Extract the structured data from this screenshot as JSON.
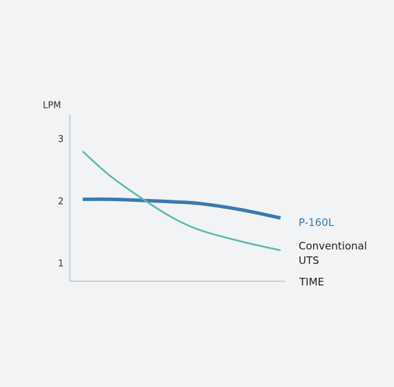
{
  "chart_data": {
    "type": "line",
    "y_label": "LPM",
    "x_label": "TIME",
    "x": [
      0.6,
      1.9,
      3.5,
      4.8,
      6.1,
      8.0,
      9.8
    ],
    "xlim": [
      0,
      10
    ],
    "ylim": [
      0.7,
      3.4
    ],
    "yticks": [
      1,
      2,
      3
    ],
    "series": [
      {
        "name": "P-160L",
        "color": "#3a79ae",
        "width": 5,
        "values": [
          2.04,
          2.04,
          2.02,
          2.0,
          1.97,
          1.87,
          1.74
        ]
      },
      {
        "name": "Conventional UTS",
        "color": "#5db8b0",
        "width": 2.5,
        "values": [
          2.81,
          2.41,
          2.02,
          1.74,
          1.54,
          1.36,
          1.22
        ]
      }
    ]
  }
}
